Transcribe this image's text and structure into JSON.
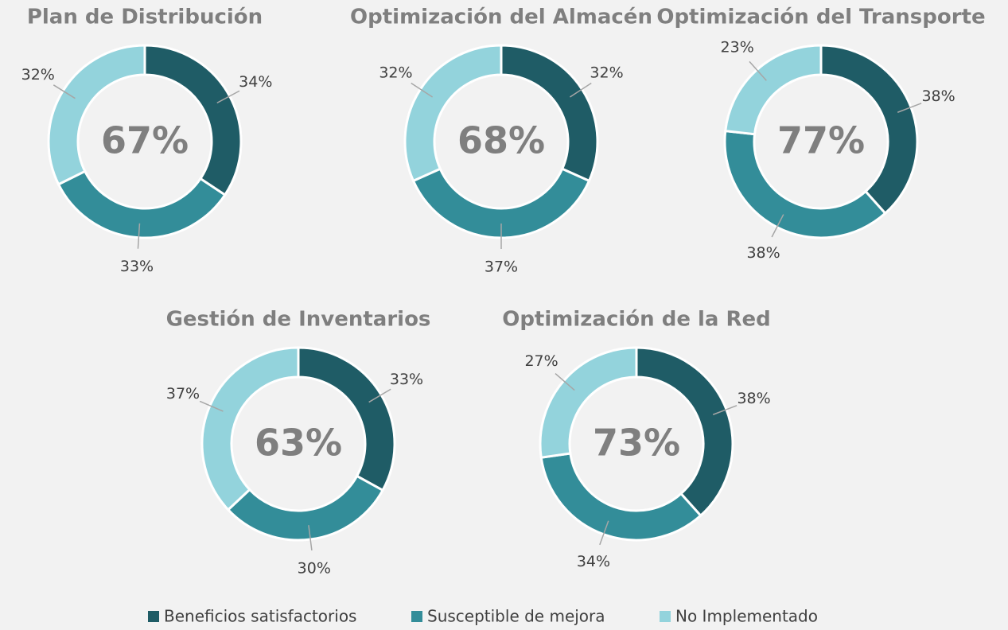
{
  "chart_data": [
    {
      "type": "donut",
      "title": "Plan de Distribución",
      "center_label": "67%",
      "categories": [
        "Beneficios satisfactorios",
        "Susceptible de mejora",
        "No Implementado"
      ],
      "values": [
        34,
        33,
        32
      ],
      "value_labels": [
        "34%",
        "33%",
        "32%"
      ],
      "colors": [
        "#1f5c66",
        "#338d99",
        "#93d3dc"
      ]
    },
    {
      "type": "donut",
      "title": "Optimización del Almacén",
      "center_label": "68%",
      "categories": [
        "Beneficios satisfactorios",
        "Susceptible de mejora",
        "No Implementado"
      ],
      "values": [
        32,
        37,
        32
      ],
      "value_labels": [
        "32%",
        "37%",
        "32%"
      ],
      "colors": [
        "#1f5c66",
        "#338d99",
        "#93d3dc"
      ]
    },
    {
      "type": "donut",
      "title": "Optimización del Transporte",
      "center_label": "77%",
      "categories": [
        "Beneficios satisfactorios",
        "Susceptible de mejora",
        "No Implementado"
      ],
      "values": [
        38,
        38,
        23
      ],
      "value_labels": [
        "38%",
        "38%",
        "23%"
      ],
      "colors": [
        "#1f5c66",
        "#338d99",
        "#93d3dc"
      ]
    },
    {
      "type": "donut",
      "title": "Gestión de Inventarios",
      "center_label": "63%",
      "categories": [
        "Beneficios satisfactorios",
        "Susceptible de mejora",
        "No Implementado"
      ],
      "values": [
        33,
        30,
        37
      ],
      "value_labels": [
        "33%",
        "30%",
        "37%"
      ],
      "colors": [
        "#1f5c66",
        "#338d99",
        "#93d3dc"
      ]
    },
    {
      "type": "donut",
      "title": "Optimización de la Red",
      "center_label": "73%",
      "categories": [
        "Beneficios satisfactorios",
        "Susceptible de mejora",
        "No Implementado"
      ],
      "values": [
        38,
        34,
        27
      ],
      "value_labels": [
        "38%",
        "34%",
        "27%"
      ],
      "colors": [
        "#1f5c66",
        "#338d99",
        "#93d3dc"
      ]
    }
  ]
}
